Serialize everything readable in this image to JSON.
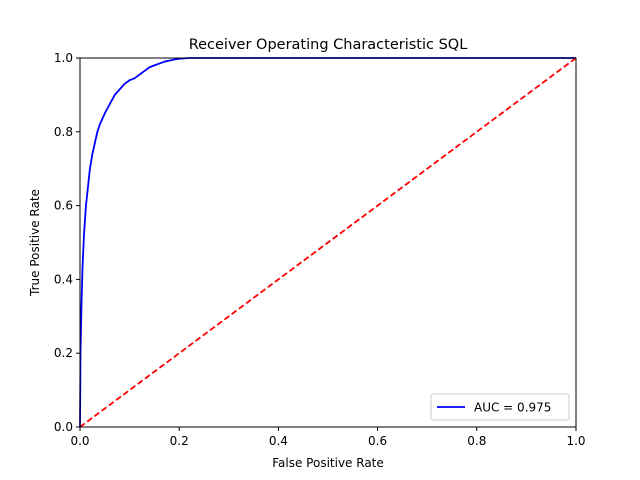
{
  "chart_data": {
    "type": "line",
    "title": "Receiver Operating Characteristic SQL",
    "xlabel": "False Positive Rate",
    "ylabel": "True Positive Rate",
    "xlim": [
      0,
      1
    ],
    "ylim": [
      0,
      1
    ],
    "x_ticks": [
      "0.0",
      "0.2",
      "0.4",
      "0.6",
      "0.8",
      "1.0"
    ],
    "y_ticks": [
      "0.0",
      "0.2",
      "0.4",
      "0.6",
      "0.8",
      "1.0"
    ],
    "grid": false,
    "legend": {
      "position": "lower-right",
      "entries": [
        "AUC = 0.975"
      ]
    },
    "series": [
      {
        "name": "AUC = 0.975",
        "color": "#0000ff",
        "style": "solid",
        "x": [
          0,
          0.001,
          0.003,
          0.005,
          0.008,
          0.012,
          0.016,
          0.02,
          0.025,
          0.03,
          0.035,
          0.04,
          0.05,
          0.06,
          0.07,
          0.08,
          0.09,
          0.1,
          0.11,
          0.12,
          0.13,
          0.14,
          0.15,
          0.16,
          0.17,
          0.18,
          0.19,
          0.2,
          0.21,
          0.22,
          0.23,
          0.25,
          0.3,
          0.4,
          0.5,
          0.6,
          0.7,
          0.8,
          0.9,
          1.0
        ],
        "y": [
          0,
          0.2,
          0.33,
          0.43,
          0.52,
          0.6,
          0.65,
          0.7,
          0.74,
          0.77,
          0.8,
          0.82,
          0.85,
          0.875,
          0.9,
          0.915,
          0.93,
          0.94,
          0.945,
          0.955,
          0.965,
          0.975,
          0.98,
          0.985,
          0.99,
          0.993,
          0.996,
          0.998,
          0.999,
          1.0,
          1.0,
          1.0,
          1.0,
          1.0,
          1.0,
          1.0,
          1.0,
          1.0,
          1.0,
          1.0
        ]
      },
      {
        "name": "",
        "color": "#ff0000",
        "style": "dashed",
        "x": [
          0,
          1
        ],
        "y": [
          0,
          1
        ]
      }
    ]
  }
}
